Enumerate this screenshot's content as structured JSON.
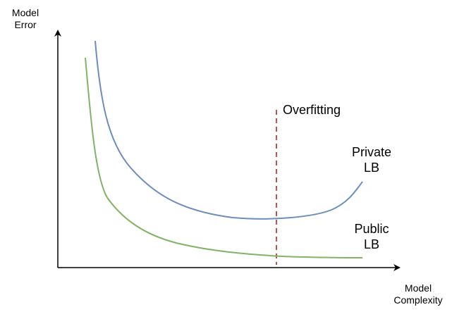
{
  "diagram": {
    "y_axis_label": [
      "Model",
      "Error"
    ],
    "x_axis_label": [
      "Model",
      "Complexity"
    ],
    "overfitting_label": "Overfitting",
    "private_label": [
      "Private",
      "LB"
    ],
    "public_label": [
      "Public",
      "LB"
    ]
  },
  "colors": {
    "axis": "#000000",
    "private_curve": "#6c8ebf",
    "public_curve": "#82b366",
    "overfitting_line": "#b85450"
  }
}
